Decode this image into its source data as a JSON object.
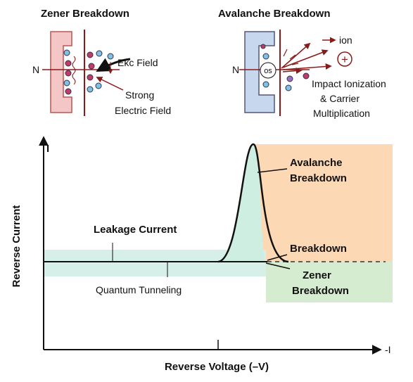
{
  "zener_panel": {
    "title": "Zener Breakdown",
    "region_label": "N",
    "field_label": "Ekc Field",
    "strong_field_label": [
      "Strong",
      "Electric Field"
    ]
  },
  "avalanche_panel": {
    "title": "Avalanche Breakdown",
    "region_label": "N",
    "electron_label": "os",
    "ion_label": "ion",
    "ion_symbol": "+",
    "impact_label": [
      "Impact Ionization",
      "& Carrier",
      "Multiplication"
    ]
  },
  "graph": {
    "y_axis_label": "Reverse Current",
    "y_axis_end": "I",
    "x_axis_label": "Reverse Voltage (–V)",
    "x_axis_end": "-I",
    "leakage_label": "Leakage Current",
    "tunneling_label": "Quantum Tunneling",
    "avalanche_label": [
      "Avalanche",
      "Breakdown"
    ],
    "breakdown_label": "Breakdown",
    "zener_label": [
      "Zener",
      "Breakdown"
    ]
  }
}
